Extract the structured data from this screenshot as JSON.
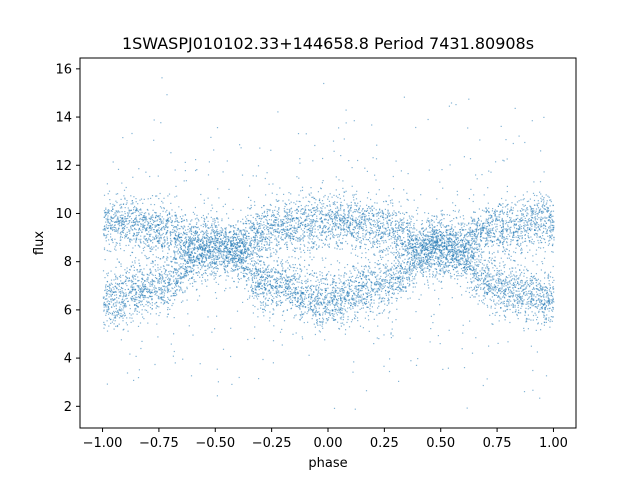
{
  "chart_data": {
    "type": "scatter",
    "title": "1SWASPJ010102.33+144658.8 Period 7431.80908s",
    "xlabel": "phase",
    "ylabel": "flux",
    "xlim": [
      -1.1,
      1.1
    ],
    "ylim": [
      1.1,
      16.45
    ],
    "xticks": [
      -1.0,
      -0.75,
      -0.5,
      -0.25,
      0.0,
      0.25,
      0.5,
      0.75,
      1.0
    ],
    "xtick_labels": [
      "−1.00",
      "−0.75",
      "−0.50",
      "−0.25",
      "0.00",
      "0.25",
      "0.50",
      "0.75",
      "1.00"
    ],
    "yticks": [
      2,
      4,
      6,
      8,
      10,
      12,
      14,
      16
    ],
    "ytick_labels": [
      "2",
      "4",
      "6",
      "8",
      "10",
      "12",
      "14",
      "16"
    ],
    "grid": false,
    "series": [
      {
        "marker_color": "#1f77b4",
        "description_points": [
          {
            "phase": -1.0,
            "flux": 9.7
          },
          {
            "phase": -0.75,
            "flux": 9.4
          },
          {
            "phase": -0.5,
            "flux": 8.3
          },
          {
            "phase": -0.25,
            "flux": 9.4
          },
          {
            "phase": 0.0,
            "flux": 9.8
          },
          {
            "phase": 0.25,
            "flux": 9.4
          },
          {
            "phase": 0.5,
            "flux": 8.3
          },
          {
            "phase": 0.75,
            "flux": 9.4
          },
          {
            "phase": 1.0,
            "flux": 9.7
          }
        ]
      },
      {
        "marker_color": "#1f77b4",
        "description_points": [
          {
            "phase": -1.0,
            "flux": 6.4
          },
          {
            "phase": -0.75,
            "flux": 7.0
          },
          {
            "phase": -0.5,
            "flux": 8.9
          },
          {
            "phase": -0.25,
            "flux": 7.1
          },
          {
            "phase": 0.0,
            "flux": 6.4
          },
          {
            "phase": 0.25,
            "flux": 7.1
          },
          {
            "phase": 0.5,
            "flux": 8.9
          },
          {
            "phase": 0.75,
            "flux": 7.0
          },
          {
            "phase": 1.0,
            "flux": 6.4
          }
        ]
      }
    ]
  }
}
